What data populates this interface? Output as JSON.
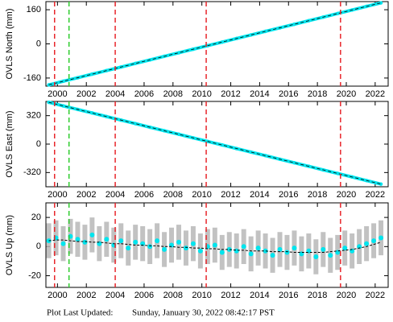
{
  "chart_data": [
    {
      "type": "scatter",
      "y_label": "OVLS North (mm)",
      "x": [
        1999.4,
        2000.4,
        2001.4,
        2002.4,
        2003.4,
        2004.4,
        2005.4,
        2006.4,
        2007.4,
        2008.4,
        2009.4,
        2010.4,
        2011.4,
        2012.4,
        2013.4,
        2014.4,
        2015.4,
        2016.4,
        2017.4,
        2018.4,
        2019.4,
        2020.4,
        2021.4,
        2022.4
      ],
      "series": [
        {
          "color": "#00e5ee",
          "values": [
            -192,
            -175.3,
            -158.6,
            -141.9,
            -125.2,
            -108.5,
            -91.8,
            -75.1,
            -58.4,
            -41.7,
            -25,
            -8.3,
            8.4,
            25.1,
            41.8,
            58.5,
            75.2,
            91.9,
            108.6,
            125.3,
            142,
            158.7,
            175.4,
            192.1
          ]
        }
      ],
      "trend_line": true,
      "xlim": [
        1999.2,
        2022.9
      ],
      "xticks": [
        2000,
        2002,
        2004,
        2006,
        2008,
        2010,
        2012,
        2014,
        2016,
        2018,
        2020,
        2022
      ],
      "ylim": [
        -198,
        198
      ],
      "yticks": [
        160,
        0,
        -160
      ],
      "events": [
        {
          "x": 1999.8,
          "color": "#e8262b"
        },
        {
          "x": 2000.8,
          "color": "#2ecc2e"
        },
        {
          "x": 2004.0,
          "color": "#e8262b"
        },
        {
          "x": 2010.3,
          "color": "#e8262b"
        },
        {
          "x": 2019.6,
          "color": "#e8262b"
        }
      ]
    },
    {
      "type": "scatter",
      "y_label": "OVLS East (mm)",
      "x": [
        1999.4,
        2000.4,
        2001.4,
        2002.4,
        2003.4,
        2004.4,
        2005.4,
        2006.4,
        2007.4,
        2008.4,
        2009.4,
        2010.4,
        2011.4,
        2012.4,
        2013.4,
        2014.4,
        2015.4,
        2016.4,
        2017.4,
        2018.4,
        2019.4,
        2020.4,
        2021.4,
        2022.4
      ],
      "series": [
        {
          "color": "#00e5ee",
          "values": [
            470,
            430,
            390,
            350,
            310,
            270,
            230,
            190,
            150,
            110,
            70,
            30,
            -10,
            -50,
            -90,
            -130,
            -170,
            -210,
            -250,
            -290,
            -330,
            -370,
            -410,
            -450
          ]
        }
      ],
      "trend_line": true,
      "xlim": [
        1999.2,
        2022.9
      ],
      "xticks": [
        2000,
        2002,
        2004,
        2006,
        2008,
        2010,
        2012,
        2014,
        2016,
        2018,
        2020,
        2022
      ],
      "ylim": [
        -480,
        480
      ],
      "yticks": [
        320,
        0,
        -320
      ],
      "events": [
        {
          "x": 1999.8,
          "color": "#e8262b"
        },
        {
          "x": 2000.8,
          "color": "#2ecc2e"
        },
        {
          "x": 2004.0,
          "color": "#e8262b"
        },
        {
          "x": 2010.3,
          "color": "#e8262b"
        },
        {
          "x": 2019.6,
          "color": "#e8262b"
        }
      ]
    },
    {
      "type": "scatter",
      "y_label": "OVLS Up (mm)",
      "x": [
        1999.4,
        1999.9,
        2000.4,
        2000.9,
        2001.4,
        2001.9,
        2002.4,
        2002.9,
        2003.4,
        2003.9,
        2004.4,
        2004.9,
        2005.4,
        2005.9,
        2006.4,
        2006.9,
        2007.4,
        2007.9,
        2008.4,
        2008.9,
        2009.4,
        2009.9,
        2010.4,
        2010.9,
        2011.4,
        2011.9,
        2012.4,
        2012.9,
        2013.4,
        2013.9,
        2014.4,
        2014.9,
        2015.4,
        2015.9,
        2016.4,
        2016.9,
        2017.4,
        2017.9,
        2018.4,
        2018.9,
        2019.4,
        2019.9,
        2020.4,
        2020.9,
        2021.4,
        2021.9,
        2022.4
      ],
      "series": [
        {
          "color": "#00e5ee",
          "values": [
            4,
            6,
            2,
            7,
            5,
            3,
            8,
            2,
            5,
            1,
            4,
            -1,
            3,
            2,
            0,
            4,
            -2,
            1,
            3,
            -1,
            2,
            -3,
            0,
            1,
            -4,
            -2,
            -3,
            0,
            -5,
            -1,
            -3,
            -6,
            -2,
            -4,
            -1,
            -5,
            -3,
            -7,
            -2,
            -6,
            -4,
            -1,
            -3,
            0,
            2,
            4,
            6
          ]
        },
        {
          "color": "#000000",
          "style": "dashed",
          "values": [
            4,
            4.5,
            4.5,
            4,
            3.5,
            3.5,
            3,
            3,
            2.5,
            2,
            2,
            1.5,
            1,
            1,
            0.5,
            0.5,
            0,
            0,
            -0.5,
            -0.5,
            -1,
            -1,
            -1.5,
            -1.5,
            -2,
            -2,
            -2.5,
            -2.5,
            -3,
            -3,
            -3,
            -3.5,
            -3.5,
            -3.5,
            -4,
            -4,
            -4,
            -4,
            -4,
            -3.5,
            -3,
            -2.5,
            -2,
            -1,
            0,
            1.5,
            3
          ]
        }
      ],
      "error": 12,
      "error_color": "#b4b4b4",
      "xlim": [
        1999.2,
        2022.9
      ],
      "xticks": [
        2000,
        2002,
        2004,
        2006,
        2008,
        2010,
        2012,
        2014,
        2016,
        2018,
        2020,
        2022
      ],
      "ylim": [
        -28,
        30
      ],
      "yticks": [
        20,
        0,
        -20
      ],
      "events": [
        {
          "x": 1999.8,
          "color": "#e8262b"
        },
        {
          "x": 2000.8,
          "color": "#2ecc2e"
        },
        {
          "x": 2004.0,
          "color": "#e8262b"
        },
        {
          "x": 2010.3,
          "color": "#e8262b"
        },
        {
          "x": 2019.6,
          "color": "#e8262b"
        }
      ]
    }
  ],
  "footer": {
    "label": "Plot Last Updated:",
    "timestamp": "Sunday, January 30, 2022 08:42:17 PST"
  }
}
